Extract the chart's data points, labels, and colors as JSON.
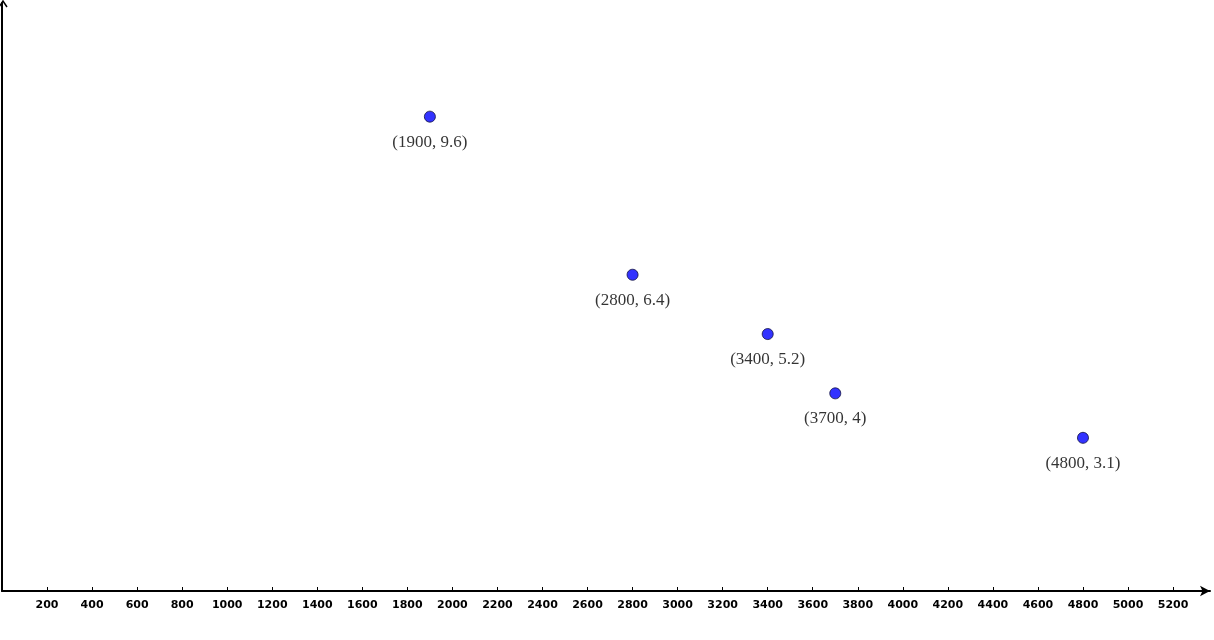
{
  "chart_data": {
    "type": "scatter",
    "x": [
      1900,
      2800,
      3400,
      3700,
      4800
    ],
    "values": [
      9.6,
      6.4,
      5.2,
      4,
      3.1
    ],
    "value_labels": [
      "(1900, 9.6)",
      "(2800, 6.4)",
      "(3400, 5.2)",
      "(3700, 4)",
      "(4800, 3.1)"
    ],
    "color": "#0000ff",
    "marker": "circle",
    "xlim": [
      0,
      5364
    ],
    "xticks": [
      200,
      400,
      600,
      800,
      1000,
      1200,
      1400,
      1600,
      1800,
      2000,
      2200,
      2400,
      2600,
      2800,
      3000,
      3200,
      3400,
      3600,
      3800,
      4000,
      4200,
      4400,
      4600,
      4800,
      5000,
      5200
    ],
    "ylim": [
      0,
      11.9
    ],
    "tick_labels": "x",
    "grid": false
  }
}
